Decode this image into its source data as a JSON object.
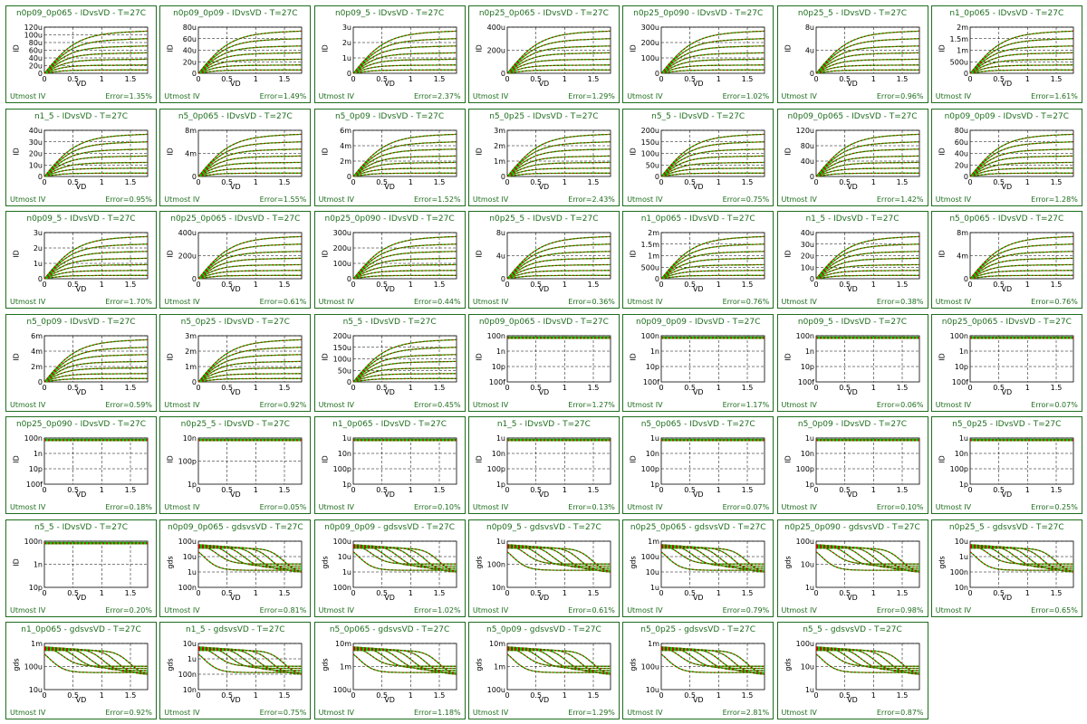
{
  "footer_label": "Utmost IV",
  "x_label": "VD",
  "x_ticks": [
    "0",
    "0.5",
    "1",
    "1.5"
  ],
  "colors": {
    "frame": "#1e6e1e",
    "measured": "#00cc00",
    "simulated": "#cc0000"
  },
  "chart_data": [
    {
      "type": "line",
      "title": "n0p09_0p065 - IDvsVD - T=27C",
      "ylabel": "ID",
      "yticks": [
        "0",
        "20u",
        "40u",
        "60u",
        "80u",
        "100u",
        "120u"
      ],
      "curve": "lin",
      "error": "Error=1.35%",
      "xlim": [
        0,
        1.8
      ]
    },
    {
      "type": "line",
      "title": "n0p09_0p09 - IDvsVD - T=27C",
      "ylabel": "ID",
      "yticks": [
        "0",
        "20u",
        "40u",
        "60u",
        "80u"
      ],
      "curve": "lin",
      "error": "Error=1.49%",
      "xlim": [
        0,
        1.8
      ]
    },
    {
      "type": "line",
      "title": "n0p09_5 - IDvsVD - T=27C",
      "ylabel": "ID",
      "yticks": [
        "0",
        "1u",
        "2u",
        "3u"
      ],
      "curve": "lin",
      "error": "Error=2.37%",
      "xlim": [
        0,
        1.8
      ]
    },
    {
      "type": "line",
      "title": "n0p25_0p065 - IDvsVD - T=27C",
      "ylabel": "ID",
      "yticks": [
        "0",
        "200u",
        "400u"
      ],
      "curve": "lin",
      "error": "Error=1.29%",
      "xlim": [
        0,
        1.8
      ]
    },
    {
      "type": "line",
      "title": "n0p25_0p090 - IDvsVD - T=27C",
      "ylabel": "ID",
      "yticks": [
        "0",
        "100u",
        "200u",
        "300u"
      ],
      "curve": "lin",
      "error": "Error=1.02%",
      "xlim": [
        0,
        1.8
      ]
    },
    {
      "type": "line",
      "title": "n0p25_5 - IDvsVD - T=27C",
      "ylabel": "ID",
      "yticks": [
        "0",
        "4u",
        "8u"
      ],
      "curve": "lin",
      "error": "Error=0.96%",
      "xlim": [
        0,
        1.8
      ]
    },
    {
      "type": "line",
      "title": "n1_0p065 - IDvsVD - T=27C",
      "ylabel": "ID",
      "yticks": [
        "0",
        "500u",
        "1m",
        "1.5m",
        "2m"
      ],
      "curve": "lin",
      "error": "Error=1.61%",
      "xlim": [
        0,
        1.8
      ]
    },
    {
      "type": "line",
      "title": "n1_5 - IDvsVD - T=27C",
      "ylabel": "ID",
      "yticks": [
        "0",
        "10u",
        "20u",
        "30u",
        "40u"
      ],
      "curve": "lin",
      "error": "Error=0.95%",
      "xlim": [
        0,
        1.8
      ]
    },
    {
      "type": "line",
      "title": "n5_0p065 - IDvsVD - T=27C",
      "ylabel": "ID",
      "yticks": [
        "0",
        "4m",
        "8m"
      ],
      "curve": "lin",
      "error": "Error=1.55%",
      "xlim": [
        0,
        1.8
      ]
    },
    {
      "type": "line",
      "title": "n5_0p09 - IDvsVD - T=27C",
      "ylabel": "ID",
      "yticks": [
        "0",
        "2m",
        "4m",
        "6m"
      ],
      "curve": "lin",
      "error": "Error=1.52%",
      "xlim": [
        0,
        1.8
      ]
    },
    {
      "type": "line",
      "title": "n5_0p25 - IDvsVD - T=27C",
      "ylabel": "ID",
      "yticks": [
        "0",
        "1m",
        "2m",
        "3m"
      ],
      "curve": "lin",
      "error": "Error=2.43%",
      "xlim": [
        0,
        1.8
      ]
    },
    {
      "type": "line",
      "title": "n5_5 - IDvsVD - T=27C",
      "ylabel": "ID",
      "yticks": [
        "0",
        "50u",
        "100u",
        "150u",
        "200u"
      ],
      "curve": "lin",
      "error": "Error=0.75%",
      "xlim": [
        0,
        1.8
      ]
    },
    {
      "type": "line",
      "title": "n0p09_0p065 - IDvsVD - T=27C",
      "ylabel": "ID",
      "yticks": [
        "0",
        "40u",
        "80u",
        "120u"
      ],
      "curve": "lin",
      "error": "Error=1.42%",
      "xlim": [
        0,
        1.8
      ]
    },
    {
      "type": "line",
      "title": "n0p09_0p09 - IDvsVD - T=27C",
      "ylabel": "ID",
      "yticks": [
        "0",
        "20u",
        "40u",
        "60u",
        "80u"
      ],
      "curve": "lin",
      "error": "Error=1.28%",
      "xlim": [
        0,
        1.8
      ]
    },
    {
      "type": "line",
      "title": "n0p09_5 - IDvsVD - T=27C",
      "ylabel": "ID",
      "yticks": [
        "0",
        "1u",
        "2u",
        "3u"
      ],
      "curve": "lin",
      "error": "Error=1.70%",
      "xlim": [
        0,
        1.8
      ]
    },
    {
      "type": "line",
      "title": "n0p25_0p065 - IDvsVD - T=27C",
      "ylabel": "ID",
      "yticks": [
        "0",
        "200u",
        "400u"
      ],
      "curve": "lin",
      "error": "Error=0.61%",
      "xlim": [
        0,
        1.8
      ]
    },
    {
      "type": "line",
      "title": "n0p25_0p090 - IDvsVD - T=27C",
      "ylabel": "ID",
      "yticks": [
        "0",
        "100u",
        "200u",
        "300u"
      ],
      "curve": "lin",
      "error": "Error=0.44%",
      "xlim": [
        0,
        1.8
      ]
    },
    {
      "type": "line",
      "title": "n0p25_5 - IDvsVD - T=27C",
      "ylabel": "ID",
      "yticks": [
        "0",
        "4u",
        "8u"
      ],
      "curve": "lin",
      "error": "Error=0.36%",
      "xlim": [
        0,
        1.8
      ]
    },
    {
      "type": "line",
      "title": "n1_0p065 - IDvsVD - T=27C",
      "ylabel": "ID",
      "yticks": [
        "0",
        "500u",
        "1m",
        "1.5m",
        "2m"
      ],
      "curve": "lin",
      "error": "Error=0.76%",
      "xlim": [
        0,
        1.8
      ]
    },
    {
      "type": "line",
      "title": "n1_5 - IDvsVD - T=27C",
      "ylabel": "ID",
      "yticks": [
        "0",
        "10u",
        "20u",
        "30u",
        "40u"
      ],
      "curve": "lin",
      "error": "Error=0.38%",
      "xlim": [
        0,
        1.8
      ]
    },
    {
      "type": "line",
      "title": "n5_0p065 - IDvsVD - T=27C",
      "ylabel": "ID",
      "yticks": [
        "0",
        "4m",
        "8m"
      ],
      "curve": "lin",
      "error": "Error=0.76%",
      "xlim": [
        0,
        1.8
      ]
    },
    {
      "type": "line",
      "title": "n5_0p09 - IDvsVD - T=27C",
      "ylabel": "ID",
      "yticks": [
        "0",
        "2m",
        "4m",
        "6m"
      ],
      "curve": "lin",
      "error": "Error=0.59%",
      "xlim": [
        0,
        1.8
      ]
    },
    {
      "type": "line",
      "title": "n5_0p25 - IDvsVD - T=27C",
      "ylabel": "ID",
      "yticks": [
        "0",
        "1m",
        "2m",
        "3m"
      ],
      "curve": "lin",
      "error": "Error=0.92%",
      "xlim": [
        0,
        1.8
      ]
    },
    {
      "type": "line",
      "title": "n5_5 - IDvsVD - T=27C",
      "ylabel": "ID",
      "yticks": [
        "0",
        "50u",
        "100u",
        "150u",
        "200u"
      ],
      "curve": "lin",
      "error": "Error=0.45%",
      "xlim": [
        0,
        1.8
      ]
    },
    {
      "type": "line",
      "title": "n0p09_0p065 - IDvsVD - T=27C",
      "ylabel": "ID",
      "yticks": [
        "100f",
        "10p",
        "1n",
        "100n"
      ],
      "curve": "flat",
      "error": "Error=1.27%",
      "xlim": [
        0,
        1.8
      ],
      "log": true
    },
    {
      "type": "line",
      "title": "n0p09_0p09 - IDvsVD - T=27C",
      "ylabel": "ID",
      "yticks": [
        "100f",
        "10p",
        "1n",
        "100n"
      ],
      "curve": "flat",
      "error": "Error=1.17%",
      "xlim": [
        0,
        1.8
      ],
      "log": true
    },
    {
      "type": "line",
      "title": "n0p09_5 - IDvsVD - T=27C",
      "ylabel": "ID",
      "yticks": [
        "100f",
        "10p",
        "1n",
        "100n"
      ],
      "curve": "flat",
      "error": "Error=0.06%",
      "xlim": [
        0,
        1.8
      ],
      "log": true
    },
    {
      "type": "line",
      "title": "n0p25_0p065 - IDvsVD - T=27C",
      "ylabel": "ID",
      "yticks": [
        "100f",
        "10p",
        "1n",
        "100n"
      ],
      "curve": "flat",
      "error": "Error=0.07%",
      "xlim": [
        0,
        1.8
      ],
      "log": true
    },
    {
      "type": "line",
      "title": "n0p25_0p090 - IDvsVD - T=27C",
      "ylabel": "ID",
      "yticks": [
        "100f",
        "10p",
        "1n",
        "100n"
      ],
      "curve": "flat",
      "error": "Error=0.18%",
      "xlim": [
        0,
        1.8
      ],
      "log": true
    },
    {
      "type": "line",
      "title": "n0p25_5 - IDvsVD - T=27C",
      "ylabel": "ID",
      "yticks": [
        "1p",
        "100p",
        "10n"
      ],
      "curve": "flat",
      "error": "Error=0.05%",
      "xlim": [
        0,
        1.8
      ],
      "log": true
    },
    {
      "type": "line",
      "title": "n1_0p065 - IDvsVD - T=27C",
      "ylabel": "ID",
      "yticks": [
        "1p",
        "100p",
        "10n",
        "1u"
      ],
      "curve": "flat",
      "error": "Error=0.10%",
      "xlim": [
        0,
        1.8
      ],
      "log": true
    },
    {
      "type": "line",
      "title": "n1_5 - IDvsVD - T=27C",
      "ylabel": "ID",
      "yticks": [
        "1p",
        "100p",
        "10n",
        "1u"
      ],
      "curve": "flat",
      "error": "Error=0.13%",
      "xlim": [
        0,
        1.8
      ],
      "log": true
    },
    {
      "type": "line",
      "title": "n5_0p065 - IDvsVD - T=27C",
      "ylabel": "ID",
      "yticks": [
        "1p",
        "100p",
        "10n",
        "1u"
      ],
      "curve": "flat",
      "error": "Error=0.07%",
      "xlim": [
        0,
        1.8
      ],
      "log": true
    },
    {
      "type": "line",
      "title": "n5_0p09 - IDvsVD - T=27C",
      "ylabel": "ID",
      "yticks": [
        "1p",
        "100p",
        "10n",
        "1u"
      ],
      "curve": "flat",
      "error": "Error=0.10%",
      "xlim": [
        0,
        1.8
      ],
      "log": true
    },
    {
      "type": "line",
      "title": "n5_0p25 - IDvsVD - T=27C",
      "ylabel": "ID",
      "yticks": [
        "1p",
        "100p",
        "10n",
        "1u"
      ],
      "curve": "flat",
      "error": "Error=0.25%",
      "xlim": [
        0,
        1.8
      ],
      "log": true
    },
    {
      "type": "line",
      "title": "n5_5 - IDvsVD - T=27C",
      "ylabel": "ID",
      "yticks": [
        "10p",
        "1n",
        "100n"
      ],
      "curve": "flat",
      "error": "Error=0.20%",
      "xlim": [
        0,
        1.8
      ],
      "log": true
    },
    {
      "type": "line",
      "title": "n0p09_0p065 - gdsvsVD - T=27C",
      "ylabel": "gds",
      "yticks": [
        "100n",
        "1u",
        "10u",
        "100u"
      ],
      "curve": "gds",
      "error": "Error=0.81%",
      "xlim": [
        0,
        1.8
      ],
      "log": true
    },
    {
      "type": "line",
      "title": "n0p09_0p09 - gdsvsVD - T=27C",
      "ylabel": "gds",
      "yticks": [
        "100n",
        "1u",
        "10u",
        "100u"
      ],
      "curve": "gds",
      "error": "Error=1.02%",
      "xlim": [
        0,
        1.8
      ],
      "log": true
    },
    {
      "type": "line",
      "title": "n0p09_5 - gdsvsVD - T=27C",
      "ylabel": "gds",
      "yticks": [
        "10n",
        "100n",
        "1u"
      ],
      "curve": "gds",
      "error": "Error=0.61%",
      "xlim": [
        0,
        1.8
      ],
      "log": true
    },
    {
      "type": "line",
      "title": "n0p25_0p065 - gdsvsVD - T=27C",
      "ylabel": "gds",
      "yticks": [
        "1u",
        "10u",
        "100u",
        "1m"
      ],
      "curve": "gds",
      "error": "Error=0.79%",
      "xlim": [
        0,
        1.8
      ],
      "log": true
    },
    {
      "type": "line",
      "title": "n0p25_0p090 - gdsvsVD - T=27C",
      "ylabel": "gds",
      "yticks": [
        "1u",
        "10u",
        "100u"
      ],
      "curve": "gds",
      "error": "Error=0.98%",
      "xlim": [
        0,
        1.8
      ],
      "log": true
    },
    {
      "type": "line",
      "title": "n0p25_5 - gdsvsVD - T=27C",
      "ylabel": "gds",
      "yticks": [
        "10n",
        "100n",
        "1u",
        "10u"
      ],
      "curve": "gds",
      "error": "Error=0.65%",
      "xlim": [
        0,
        1.8
      ],
      "log": true
    },
    {
      "type": "line",
      "title": "n1_0p065 - gdsvsVD - T=27C",
      "ylabel": "gds",
      "yticks": [
        "10u",
        "100u",
        "1m"
      ],
      "curve": "gds",
      "error": "Error=0.92%",
      "xlim": [
        0,
        1.8
      ],
      "log": true
    },
    {
      "type": "line",
      "title": "n1_5 - gdsvsVD - T=27C",
      "ylabel": "gds",
      "yticks": [
        "10n",
        "100n",
        "1u",
        "10u"
      ],
      "curve": "gds",
      "error": "Error=0.75%",
      "xlim": [
        0,
        1.8
      ],
      "log": true
    },
    {
      "type": "line",
      "title": "n5_0p065 - gdsvsVD - T=27C",
      "ylabel": "gds",
      "yticks": [
        "100u",
        "1m",
        "10m"
      ],
      "curve": "gds",
      "error": "Error=1.18%",
      "xlim": [
        0,
        1.8
      ],
      "log": true
    },
    {
      "type": "line",
      "title": "n5_0p09 - gdsvsVD - T=27C",
      "ylabel": "gds",
      "yticks": [
        "100u",
        "1m",
        "10m"
      ],
      "curve": "gds",
      "error": "Error=1.29%",
      "xlim": [
        0,
        1.8
      ],
      "log": true
    },
    {
      "type": "line",
      "title": "n5_0p25 - gdsvsVD - T=27C",
      "ylabel": "gds",
      "yticks": [
        "10u",
        "100u",
        "1m"
      ],
      "curve": "gds",
      "error": "Error=2.81%",
      "xlim": [
        0,
        1.8
      ],
      "log": true
    },
    {
      "type": "line",
      "title": "n5_5 - gdsvsVD - T=27C",
      "ylabel": "gds",
      "yticks": [
        "1u",
        "10u",
        "100u"
      ],
      "curve": "gds",
      "error": "Error=0.87%",
      "xlim": [
        0,
        1.8
      ],
      "log": true
    }
  ]
}
